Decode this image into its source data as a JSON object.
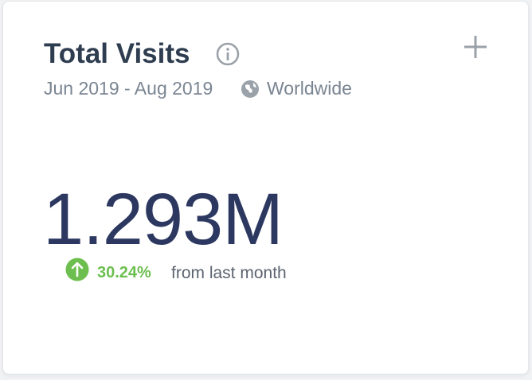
{
  "card": {
    "title": "Total Visits",
    "date_range": "Jun 2019 - Aug 2019",
    "region": "Worldwide",
    "metric": "1.293M",
    "change": "30.24%",
    "change_text": "from last month"
  }
}
